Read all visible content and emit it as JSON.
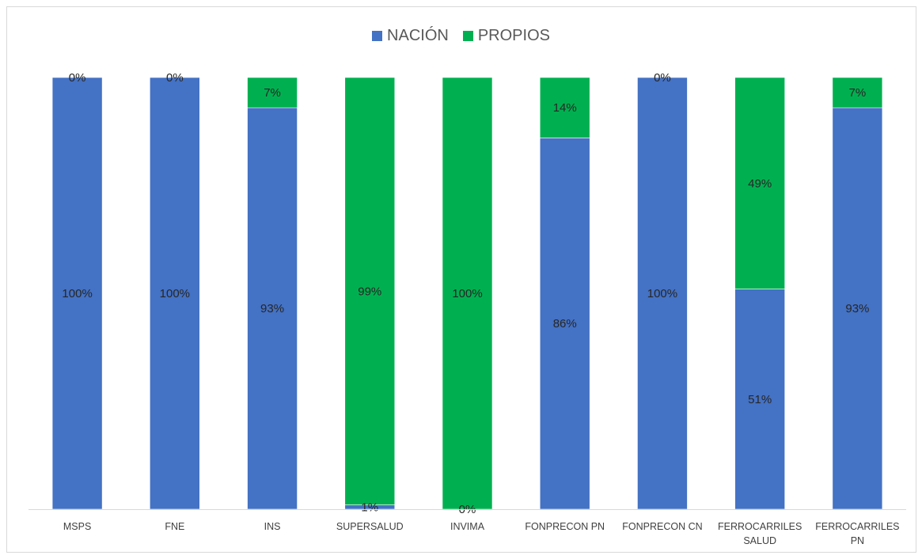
{
  "chart_data": {
    "type": "bar",
    "stacked": true,
    "percent_stacked": true,
    "categories": [
      [
        "MSPS"
      ],
      [
        "FNE"
      ],
      [
        "INS"
      ],
      [
        "SUPERSALUD"
      ],
      [
        "INVIMA"
      ],
      [
        "FONPRECON PN"
      ],
      [
        "FONPRECON CN"
      ],
      [
        "FERROCARRILES",
        "SALUD"
      ],
      [
        "FERROCARRILES",
        "PN"
      ]
    ],
    "series": [
      {
        "name": "NACIÓN",
        "color": "#4472c4",
        "values": [
          100,
          100,
          93,
          1,
          0,
          86,
          100,
          51,
          93
        ]
      },
      {
        "name": "PROPIOS",
        "color": "#00b050",
        "values": [
          0,
          0,
          7,
          99,
          100,
          14,
          0,
          49,
          7
        ]
      }
    ],
    "data_labels": [
      [
        "100%",
        "100%",
        "93%",
        "1%",
        "0%",
        "86%",
        "100%",
        "51%",
        "93%"
      ],
      [
        "0%",
        "0%",
        "7%",
        "99%",
        "100%",
        "14%",
        "0%",
        "49%",
        "7%"
      ]
    ],
    "ylim": [
      0,
      100
    ],
    "legend_position": "top",
    "grid": false
  }
}
